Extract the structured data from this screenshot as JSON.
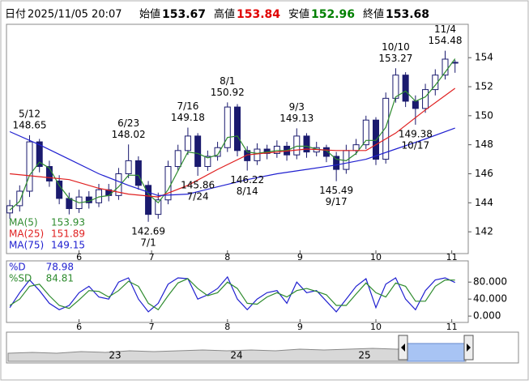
{
  "chart_data": {
    "type": "candlestick",
    "header": {
      "date_label": "日付",
      "datetime": "2025/11/05 20:07",
      "fields": [
        {
          "label": "始値",
          "value": 153.67,
          "color": "#000000"
        },
        {
          "label": "高値",
          "value": 153.84,
          "color": "#e00000"
        },
        {
          "label": "安値",
          "value": 152.96,
          "color": "#008000"
        },
        {
          "label": "終値",
          "value": 153.68,
          "color": "#000000"
        }
      ]
    },
    "xlim": [
      -1,
      139
    ],
    "xticks": [
      {
        "value": 21,
        "label": "6"
      },
      {
        "value": 43,
        "label": "7"
      },
      {
        "value": 66,
        "label": "8"
      },
      {
        "value": 88,
        "label": "9"
      },
      {
        "value": 111,
        "label": "10"
      },
      {
        "value": 134,
        "label": "11"
      }
    ],
    "ylim": [
      140.5,
      156.3
    ],
    "yticks": [
      142,
      144,
      146,
      148,
      150,
      152,
      154
    ],
    "x": [
      0,
      3,
      6,
      9,
      12,
      15,
      18,
      21,
      24,
      27,
      30,
      33,
      36,
      39,
      42,
      45,
      48,
      51,
      54,
      57,
      60,
      63,
      66,
      69,
      72,
      75,
      78,
      81,
      84,
      87,
      90,
      93,
      96,
      99,
      102,
      105,
      108,
      111,
      114,
      117,
      120,
      123,
      126,
      129,
      132,
      135
    ],
    "candles": {
      "up_color": "#ffffff",
      "down_color": "#1a1a6e",
      "open": [
        143.3,
        143.8,
        144.8,
        148.2,
        146.5,
        145.5,
        144.3,
        143.6,
        144.4,
        144.0,
        144.9,
        144.5,
        146.0,
        146.9,
        145.2,
        143.2,
        144.2,
        146.5,
        147.6,
        148.6,
        146.5,
        147.2,
        147.8,
        150.6,
        147.6,
        146.9,
        147.7,
        147.4,
        147.9,
        147.3,
        148.6,
        147.5,
        147.8,
        147.2,
        146.3,
        147.6,
        148.0,
        149.7,
        147.0,
        151.2,
        152.8,
        151.0,
        150.5,
        151.8,
        152.8,
        153.67
      ],
      "high": [
        144.2,
        145.2,
        148.65,
        148.4,
        146.9,
        145.9,
        144.7,
        144.9,
        144.8,
        145.3,
        145.3,
        146.4,
        148.02,
        147.2,
        145.5,
        144.7,
        146.9,
        148.0,
        149.18,
        148.8,
        147.6,
        148.2,
        150.92,
        150.8,
        147.9,
        148.1,
        148.0,
        148.3,
        148.2,
        149.13,
        148.8,
        148.2,
        148.0,
        147.5,
        148.0,
        148.4,
        150.0,
        149.9,
        151.6,
        153.27,
        153.0,
        151.4,
        152.2,
        153.2,
        154.48,
        153.84
      ],
      "low": [
        142.9,
        143.4,
        144.4,
        146.1,
        145.1,
        143.9,
        143.2,
        143.3,
        143.6,
        143.7,
        144.1,
        144.2,
        145.7,
        144.9,
        142.69,
        142.9,
        143.9,
        146.2,
        147.3,
        145.86,
        146.2,
        146.9,
        147.5,
        147.2,
        146.22,
        146.6,
        147.0,
        147.1,
        146.9,
        147.0,
        147.1,
        147.2,
        146.8,
        145.49,
        146.0,
        147.3,
        147.7,
        146.6,
        146.7,
        150.9,
        150.6,
        149.38,
        150.2,
        151.4,
        152.5,
        152.96
      ],
      "close": [
        143.8,
        144.8,
        148.2,
        146.5,
        145.5,
        144.3,
        143.6,
        144.4,
        144.0,
        144.9,
        144.5,
        146.0,
        146.9,
        145.2,
        143.2,
        144.2,
        146.5,
        147.6,
        148.6,
        146.5,
        147.2,
        147.8,
        150.6,
        147.6,
        146.9,
        147.7,
        147.4,
        147.9,
        147.3,
        148.6,
        147.5,
        147.8,
        147.2,
        146.3,
        147.6,
        148.0,
        149.7,
        147.0,
        151.2,
        152.8,
        151.0,
        150.5,
        151.8,
        152.8,
        153.9,
        153.68
      ]
    },
    "series": [
      {
        "name": "MA(5)",
        "color": "#2e8b2e",
        "values": [
          143.5,
          144.1,
          145.9,
          146.8,
          146.4,
          145.2,
          144.3,
          144.0,
          144.1,
          144.4,
          144.5,
          145.1,
          145.9,
          145.9,
          144.6,
          144.0,
          144.9,
          146.2,
          147.5,
          147.4,
          147.1,
          147.3,
          148.5,
          148.6,
          147.5,
          147.4,
          147.5,
          147.6,
          147.6,
          147.9,
          147.9,
          147.7,
          147.6,
          147.0,
          146.9,
          147.4,
          148.3,
          148.3,
          149.2,
          151.3,
          151.7,
          151.0,
          151.3,
          152.1,
          153.0,
          153.93
        ]
      },
      {
        "name": "MA(25)",
        "color": "#e02020",
        "x": [
          0,
          9,
          18,
          27,
          36,
          45,
          54,
          63,
          72,
          81,
          90,
          99,
          108,
          117,
          126,
          135
        ],
        "values": [
          146.0,
          145.8,
          145.6,
          145.0,
          144.6,
          144.4,
          145.2,
          146.3,
          147.3,
          147.5,
          147.7,
          147.6,
          147.6,
          148.8,
          150.4,
          151.89
        ]
      },
      {
        "name": "MA(75)",
        "color": "#2020d0",
        "x": [
          0,
          9,
          18,
          27,
          36,
          45,
          54,
          63,
          72,
          81,
          90,
          99,
          108,
          117,
          126,
          135
        ],
        "values": [
          148.9,
          148.0,
          147.0,
          146.0,
          145.2,
          144.5,
          144.6,
          145.1,
          145.6,
          146.0,
          146.3,
          146.6,
          147.0,
          147.7,
          148.4,
          149.15
        ]
      }
    ],
    "annotations": [
      {
        "date": "5/12",
        "price": 148.65,
        "x": 6,
        "pos": "above"
      },
      {
        "date": "6/23",
        "price": 148.02,
        "x": 36,
        "pos": "above"
      },
      {
        "date": "7/1",
        "price": 142.69,
        "x": 42,
        "pos": "below"
      },
      {
        "date": "7/16",
        "price": 149.18,
        "x": 54,
        "pos": "above"
      },
      {
        "date": "7/24",
        "price": 145.86,
        "x": 57,
        "pos": "below"
      },
      {
        "date": "8/1",
        "price": 150.92,
        "x": 66,
        "pos": "above"
      },
      {
        "date": "8/14",
        "price": 146.22,
        "x": 72,
        "pos": "below"
      },
      {
        "date": "9/3",
        "price": 149.13,
        "x": 87,
        "pos": "above"
      },
      {
        "date": "9/17",
        "price": 145.49,
        "x": 99,
        "pos": "below"
      },
      {
        "date": "10/10",
        "price": 153.27,
        "x": 117,
        "pos": "above"
      },
      {
        "date": "10/17",
        "price": 149.38,
        "x": 123,
        "pos": "below"
      },
      {
        "date": "11/4",
        "price": 154.48,
        "x": 132,
        "pos": "above"
      }
    ],
    "oscillator": {
      "type": "line",
      "ylim": [
        -15,
        130
      ],
      "yticks": [
        {
          "value": 80,
          "label": "80.000"
        },
        {
          "value": 40,
          "label": "40.000"
        },
        {
          "value": 0,
          "label": "0.000"
        }
      ],
      "series": [
        {
          "name": "%D",
          "color": "#2020d0",
          "values": [
            20,
            55,
            85,
            60,
            30,
            15,
            25,
            55,
            70,
            45,
            40,
            80,
            90,
            40,
            10,
            30,
            75,
            90,
            88,
            40,
            50,
            65,
            92,
            40,
            15,
            40,
            55,
            60,
            30,
            80,
            55,
            60,
            35,
            10,
            40,
            70,
            88,
            20,
            75,
            90,
            40,
            15,
            60,
            85,
            90,
            78.98
          ]
        },
        {
          "name": "%SD",
          "color": "#2e8b2e",
          "values": [
            25,
            40,
            70,
            75,
            48,
            25,
            18,
            38,
            60,
            58,
            45,
            60,
            82,
            70,
            30,
            15,
            48,
            78,
            88,
            65,
            48,
            55,
            80,
            65,
            30,
            28,
            45,
            55,
            45,
            60,
            65,
            58,
            50,
            25,
            25,
            52,
            78,
            55,
            45,
            78,
            70,
            35,
            35,
            70,
            85,
            84.81
          ]
        }
      ]
    },
    "navigator": {
      "labels": [
        "23",
        "24",
        "25"
      ]
    }
  }
}
